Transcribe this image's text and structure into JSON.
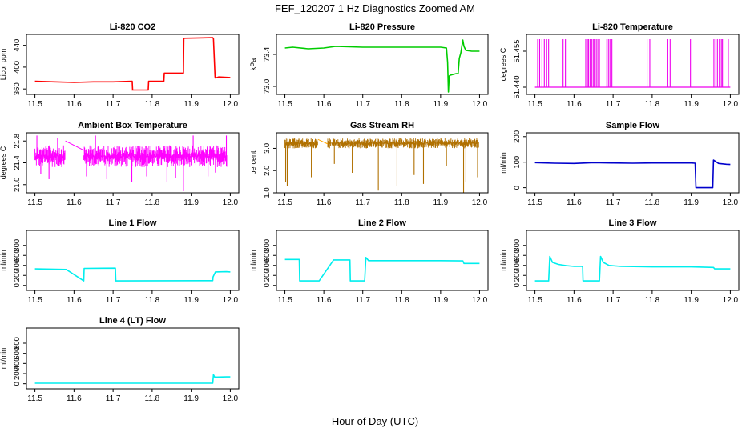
{
  "figure": {
    "title": "FEF_120207  1 Hz Diagnostics Zoomed AM",
    "xlabel": "Hour of Day (UTC)"
  },
  "chart_data": [
    {
      "type": "line",
      "title": "Li-820 CO2",
      "ylabel": "Licor ppm",
      "color": "#ff0000",
      "xlim": [
        11.5,
        12.0
      ],
      "ylim": [
        350,
        460
      ],
      "xticks": [
        11.5,
        11.6,
        11.7,
        11.8,
        11.9,
        12.0
      ],
      "yticks": [
        360,
        400,
        440
      ],
      "x": [
        11.5,
        11.55,
        11.6,
        11.65,
        11.7,
        11.749,
        11.75,
        11.749,
        11.751,
        11.79,
        11.791,
        11.83,
        11.831,
        11.88,
        11.881,
        11.955,
        11.957,
        11.961,
        11.962,
        11.97,
        12.0
      ],
      "y": [
        374,
        373,
        372,
        373,
        373,
        374,
        358,
        358,
        358,
        358,
        374,
        374,
        389,
        389,
        453,
        454,
        452,
        382,
        380,
        382,
        381
      ]
    },
    {
      "type": "line",
      "title": "Li-820 Pressure",
      "ylabel": "kPa",
      "color": "#00cc00",
      "xlim": [
        11.5,
        12.0
      ],
      "ylim": [
        72.9,
        73.65
      ],
      "xticks": [
        11.5,
        11.6,
        11.7,
        11.8,
        11.9,
        12.0
      ],
      "yticks": [
        73.0,
        73.4
      ],
      "x": [
        11.5,
        11.52,
        11.56,
        11.6,
        11.63,
        11.7,
        11.8,
        11.9,
        11.915,
        11.918,
        11.92,
        11.922,
        11.925,
        11.94,
        11.945,
        11.948,
        11.952,
        11.957,
        11.96,
        11.965,
        11.98,
        12.0
      ],
      "y": [
        73.48,
        73.49,
        73.47,
        73.48,
        73.5,
        73.49,
        73.49,
        73.49,
        73.48,
        73.3,
        72.93,
        73.13,
        73.14,
        73.16,
        73.16,
        73.35,
        73.42,
        73.58,
        73.5,
        73.45,
        73.44,
        73.44
      ]
    },
    {
      "type": "line",
      "title": "Li-820 Temperature",
      "ylabel": "degrees C",
      "color": "#ee00ee",
      "xlim": [
        11.5,
        12.0
      ],
      "ylim": [
        51.437,
        51.462
      ],
      "xticks": [
        11.5,
        11.6,
        11.7,
        11.8,
        11.9,
        12.0
      ],
      "yticks": [
        51.44,
        51.455
      ],
      "baseline": 51.44,
      "high": 51.46,
      "spikes_x": [
        11.507,
        11.512,
        11.518,
        11.524,
        11.53,
        11.535,
        11.572,
        11.578,
        11.63,
        11.634,
        11.637,
        11.641,
        11.645,
        11.649,
        11.652,
        11.657,
        11.661,
        11.665,
        11.684,
        11.688,
        11.692,
        11.697,
        11.787,
        11.794,
        11.84,
        11.846,
        11.898,
        11.958,
        11.963,
        11.967,
        11.972,
        11.977,
        11.98,
        11.995
      ]
    },
    {
      "type": "line",
      "title": "Ambient Box Temperature",
      "ylabel": "degrees C",
      "color": "#ff00ff",
      "xlim": [
        11.5,
        12.0
      ],
      "ylim": [
        20.85,
        21.95
      ],
      "xticks": [
        11.5,
        11.6,
        11.7,
        11.8,
        11.9,
        12.0
      ],
      "yticks": [
        21.0,
        21.4,
        21.8
      ],
      "noise_segments": [
        [
          11.5,
          11.578
        ],
        [
          11.625,
          11.992
        ]
      ],
      "noise_low": 21.32,
      "noise_high": 21.72,
      "gap_line": {
        "x": [
          11.578,
          11.625
        ],
        "y": [
          21.8,
          21.63
        ]
      },
      "outliers": [
        {
          "x": 11.505,
          "y": 21.9
        },
        {
          "x": 11.515,
          "y": 21.2
        },
        {
          "x": 11.536,
          "y": 21.1
        },
        {
          "x": 11.558,
          "y": 21.86
        },
        {
          "x": 11.632,
          "y": 21.15
        },
        {
          "x": 11.655,
          "y": 21.9
        },
        {
          "x": 11.684,
          "y": 21.1
        },
        {
          "x": 11.748,
          "y": 21.05
        },
        {
          "x": 11.786,
          "y": 21.15
        },
        {
          "x": 11.838,
          "y": 21.05
        },
        {
          "x": 11.86,
          "y": 21.12
        },
        {
          "x": 11.88,
          "y": 20.88
        },
        {
          "x": 11.905,
          "y": 21.9
        },
        {
          "x": 11.943,
          "y": 21.15
        },
        {
          "x": 11.962,
          "y": 21.22
        },
        {
          "x": 11.99,
          "y": 21.9
        }
      ]
    },
    {
      "type": "scatter",
      "title": "Gas Stream RH",
      "ylabel": "percent",
      "color": "#ffa500",
      "stroke": "#b07000",
      "xlim": [
        11.5,
        12.0
      ],
      "ylim": [
        1.0,
        3.7
      ],
      "xticks": [
        11.5,
        11.6,
        11.7,
        11.8,
        11.9,
        12.0
      ],
      "yticks": [
        1.0,
        2.0,
        3.0
      ],
      "noise_segments": [
        [
          11.5,
          11.585
        ],
        [
          11.61,
          11.998
        ]
      ],
      "noise_low": 3.0,
      "noise_high": 3.45,
      "gap_line": {
        "x": [
          11.585,
          11.61
        ],
        "y": [
          3.4,
          3.2
        ]
      },
      "dips": [
        {
          "x": 11.502,
          "y": 1.5
        },
        {
          "x": 11.506,
          "y": 1.3
        },
        {
          "x": 11.568,
          "y": 1.7
        },
        {
          "x": 11.627,
          "y": 2.3
        },
        {
          "x": 11.673,
          "y": 1.9
        },
        {
          "x": 11.74,
          "y": 1.1
        },
        {
          "x": 11.788,
          "y": 1.3
        },
        {
          "x": 11.832,
          "y": 1.8
        },
        {
          "x": 11.856,
          "y": 1.4
        },
        {
          "x": 11.915,
          "y": 2.2
        },
        {
          "x": 11.959,
          "y": 1.0
        },
        {
          "x": 11.965,
          "y": 1.5
        },
        {
          "x": 11.995,
          "y": 1.7
        }
      ]
    },
    {
      "type": "line",
      "title": "Sample Flow",
      "ylabel": "ml/min",
      "color": "#0000cc",
      "xlim": [
        11.5,
        12.0
      ],
      "ylim": [
        -20,
        215
      ],
      "xticks": [
        11.5,
        11.6,
        11.7,
        11.8,
        11.9,
        12.0
      ],
      "yticks": [
        0,
        100,
        200
      ],
      "x": [
        11.5,
        11.55,
        11.6,
        11.65,
        11.7,
        11.75,
        11.8,
        11.85,
        11.9,
        11.91,
        11.912,
        11.92,
        11.95,
        11.955,
        11.957,
        11.97,
        11.99,
        12.0
      ],
      "y": [
        98,
        96,
        95,
        98,
        97,
        96,
        97,
        97,
        97,
        96,
        0,
        0,
        0,
        0,
        108,
        95,
        92,
        91
      ]
    },
    {
      "type": "line",
      "title": "Line 1 Flow",
      "ylabel": "ml/min",
      "color": "#00eeee",
      "xlim": [
        11.5,
        12.0
      ],
      "ylim": [
        -100,
        1100
      ],
      "xticks": [
        11.5,
        11.6,
        11.7,
        11.8,
        11.9,
        12.0
      ],
      "yticks": [
        0,
        200,
        400,
        600,
        800
      ],
      "x": [
        11.5,
        11.58,
        11.625,
        11.626,
        11.706,
        11.707,
        11.955,
        11.956,
        11.962,
        11.99,
        12.0
      ],
      "y": [
        330,
        320,
        90,
        340,
        345,
        90,
        95,
        170,
        270,
        275,
        270
      ]
    },
    {
      "type": "line",
      "title": "Line 2 Flow",
      "ylabel": "ml/min",
      "color": "#00eeee",
      "xlim": [
        11.5,
        12.0
      ],
      "ylim": [
        -100,
        1100
      ],
      "xticks": [
        11.5,
        11.6,
        11.7,
        11.8,
        11.9,
        12.0
      ],
      "yticks": [
        0,
        200,
        400,
        600,
        800
      ],
      "x": [
        11.5,
        11.537,
        11.538,
        11.588,
        11.625,
        11.667,
        11.668,
        11.705,
        11.708,
        11.715,
        11.8,
        11.9,
        11.957,
        11.96,
        12.0
      ],
      "y": [
        520,
        520,
        90,
        90,
        510,
        510,
        90,
        90,
        560,
        495,
        495,
        495,
        490,
        440,
        440
      ]
    },
    {
      "type": "line",
      "title": "Line 3 Flow",
      "ylabel": "ml/min",
      "color": "#00eeee",
      "xlim": [
        11.5,
        12.0
      ],
      "ylim": [
        -100,
        1100
      ],
      "xticks": [
        11.5,
        11.6,
        11.7,
        11.8,
        11.9,
        12.0
      ],
      "yticks": [
        0,
        200,
        400,
        600,
        800
      ],
      "x": [
        11.5,
        11.535,
        11.538,
        11.545,
        11.56,
        11.58,
        11.6,
        11.622,
        11.623,
        11.665,
        11.668,
        11.675,
        11.69,
        11.72,
        11.8,
        11.9,
        11.957,
        11.96,
        12.0
      ],
      "y": [
        90,
        90,
        580,
        460,
        420,
        395,
        380,
        380,
        90,
        90,
        580,
        460,
        400,
        380,
        370,
        370,
        360,
        330,
        330
      ]
    },
    {
      "type": "line",
      "title": "Line 4 (LT) Flow",
      "ylabel": "ml/min",
      "color": "#00eeee",
      "xlim": [
        11.5,
        12.0
      ],
      "ylim": [
        -100,
        1100
      ],
      "xticks": [
        11.5,
        11.6,
        11.7,
        11.8,
        11.9,
        12.0
      ],
      "yticks": [
        0,
        200,
        400,
        600,
        800
      ],
      "x": [
        11.5,
        11.6,
        11.7,
        11.8,
        11.9,
        11.955,
        11.957,
        11.96,
        11.99,
        12.0
      ],
      "y": [
        10,
        10,
        10,
        10,
        10,
        10,
        180,
        130,
        135,
        135
      ]
    }
  ]
}
